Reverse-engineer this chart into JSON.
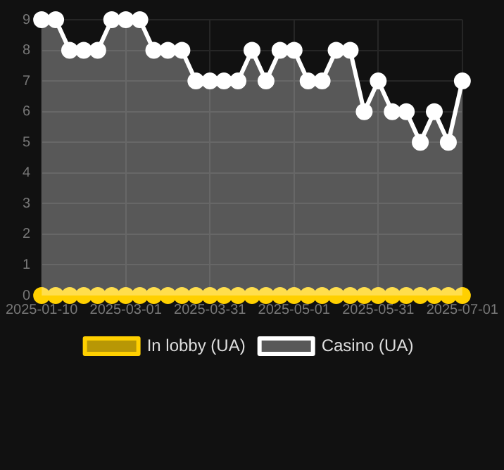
{
  "chart_data": {
    "type": "line",
    "categories": [
      "2025-01-10",
      null,
      null,
      null,
      null,
      null,
      "2025-03-01",
      null,
      null,
      null,
      null,
      null,
      "2025-03-31",
      null,
      null,
      null,
      null,
      null,
      "2025-05-01",
      null,
      null,
      null,
      null,
      null,
      "2025-05-31",
      null,
      null,
      null,
      null,
      null,
      "2025-07-01"
    ],
    "series": [
      {
        "name": "In lobby (UA)",
        "type": "line",
        "color": "#ffd000",
        "values": [
          0,
          0,
          0,
          0,
          0,
          0,
          0,
          0,
          0,
          0,
          0,
          0,
          0,
          0,
          0,
          0,
          0,
          0,
          0,
          0,
          0,
          0,
          0,
          0,
          0,
          0,
          0,
          0,
          0,
          0,
          0
        ]
      },
      {
        "name": "Casino (UA)",
        "type": "area",
        "color": "#ffffff",
        "values": [
          9,
          9,
          8,
          8,
          8,
          9,
          9,
          9,
          8,
          8,
          8,
          7,
          7,
          7,
          7,
          8,
          7,
          8,
          8,
          7,
          7,
          8,
          8,
          6,
          7,
          6,
          6,
          5,
          6,
          5,
          7
        ]
      }
    ],
    "ylim": [
      0,
      9
    ],
    "yticks": [
      0,
      1,
      2,
      3,
      4,
      5,
      6,
      7,
      8,
      9
    ],
    "grid": true,
    "legend": "bottom",
    "marker": "circle",
    "line_style": "solid"
  }
}
